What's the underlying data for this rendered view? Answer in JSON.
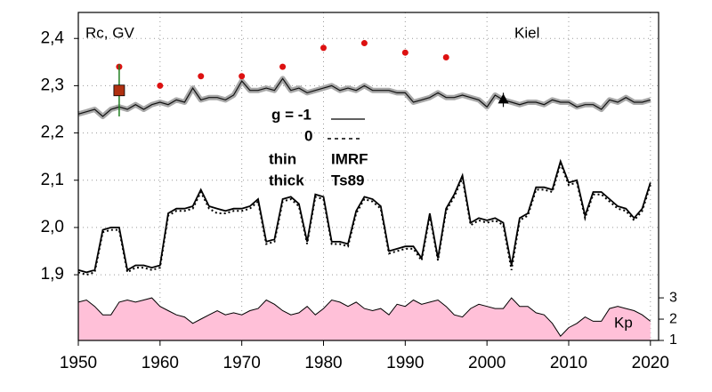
{
  "chart_data": {
    "type": "line",
    "title": "Rc, GV",
    "annotations": {
      "station": "Kiel",
      "g1": "g = -1",
      "g0": "0",
      "thin": "thin",
      "thick": "thick",
      "imrf": "IMRF",
      "ts89": "Ts89"
    },
    "xlim": [
      1950,
      2021
    ],
    "xticks": [
      1950,
      1960,
      1970,
      1980,
      1990,
      2000,
      2010,
      2020
    ],
    "ylim": [
      1.761,
      2.455
    ],
    "yticks": [
      {
        "value": 1.9,
        "label": "1,9"
      },
      {
        "value": 2.0,
        "label": "2,0"
      },
      {
        "value": 2.1,
        "label": "2,1"
      },
      {
        "value": 2.2,
        "label": "2,2"
      },
      {
        "value": 2.3,
        "label": "2,3"
      },
      {
        "value": 2.4,
        "label": "2,4"
      }
    ],
    "y2lim": [
      1,
      16.4
    ],
    "y2ticks": [
      1,
      2,
      3
    ],
    "grid": true,
    "series": [
      {
        "name": "Kp",
        "style": "area",
        "axis": "y2",
        "color": "#ffc0d8",
        "x": [
          1950,
          1951,
          1952,
          1953,
          1954,
          1955,
          1956,
          1957,
          1958,
          1959,
          1960,
          1961,
          1962,
          1963,
          1964,
          1965,
          1966,
          1967,
          1968,
          1969,
          1970,
          1971,
          1972,
          1973,
          1974,
          1975,
          1976,
          1977,
          1978,
          1979,
          1980,
          1981,
          1982,
          1983,
          1984,
          1985,
          1986,
          1987,
          1988,
          1989,
          1990,
          1991,
          1992,
          1993,
          1994,
          1995,
          1996,
          1997,
          1998,
          1999,
          2000,
          2001,
          2002,
          2003,
          2004,
          2005,
          2006,
          2007,
          2008,
          2009,
          2010,
          2011,
          2012,
          2013,
          2014,
          2015,
          2016,
          2017,
          2018,
          2019,
          2020
        ],
        "values": [
          2.8,
          2.9,
          2.6,
          2.2,
          2.2,
          2.8,
          2.9,
          2.8,
          2.9,
          3.0,
          2.6,
          2.4,
          2.2,
          2.1,
          1.8,
          2.0,
          2.2,
          2.4,
          2.2,
          2.3,
          2.2,
          2.4,
          2.5,
          2.9,
          2.7,
          2.4,
          2.2,
          2.3,
          2.6,
          2.2,
          2.5,
          2.9,
          2.8,
          2.6,
          2.8,
          2.5,
          2.4,
          2.5,
          2.2,
          2.7,
          2.6,
          2.9,
          2.7,
          2.8,
          2.9,
          2.6,
          2.2,
          2.1,
          2.5,
          2.7,
          2.6,
          2.5,
          2.5,
          3.0,
          2.6,
          2.6,
          2.3,
          2.2,
          1.8,
          1.2,
          1.6,
          1.8,
          2.1,
          1.9,
          1.9,
          2.5,
          2.6,
          2.5,
          2.4,
          2.2,
          1.9
        ]
      },
      {
        "style": "band",
        "color": "#111111",
        "x": [
          1950,
          1951,
          1952,
          1953,
          1954,
          1955,
          1956,
          1957,
          1958,
          1959,
          1960,
          1961,
          1962,
          1963,
          1964,
          1965,
          1966,
          1967,
          1968,
          1969,
          1970,
          1971,
          1972,
          1973,
          1974,
          1975,
          1976,
          1977,
          1978,
          1979,
          1980,
          1981,
          1982,
          1983,
          1984,
          1985,
          1986,
          1987,
          1988,
          1989,
          1990,
          1991,
          1992,
          1993,
          1994,
          1995,
          1996,
          1997,
          1998,
          1999,
          2000,
          2001,
          2002,
          2003,
          2004,
          2005,
          2006,
          2007,
          2008,
          2009,
          2010,
          2011,
          2012,
          2013,
          2014,
          2015,
          2016,
          2017,
          2018,
          2019,
          2020
        ],
        "values": [
          2.24,
          2.245,
          2.25,
          2.235,
          2.25,
          2.255,
          2.25,
          2.26,
          2.25,
          2.26,
          2.265,
          2.26,
          2.27,
          2.265,
          2.295,
          2.27,
          2.275,
          2.275,
          2.27,
          2.28,
          2.31,
          2.29,
          2.29,
          2.295,
          2.29,
          2.315,
          2.29,
          2.295,
          2.285,
          2.29,
          2.295,
          2.3,
          2.29,
          2.295,
          2.29,
          2.3,
          2.29,
          2.29,
          2.29,
          2.285,
          2.285,
          2.265,
          2.27,
          2.275,
          2.285,
          2.275,
          2.275,
          2.28,
          2.275,
          2.27,
          2.255,
          2.28,
          2.27,
          2.265,
          2.26,
          2.265,
          2.265,
          2.26,
          2.27,
          2.265,
          2.265,
          2.255,
          2.26,
          2.26,
          2.25,
          2.27,
          2.265,
          2.275,
          2.265,
          2.265,
          2.27
        ]
      },
      {
        "style": "solid",
        "color": "#000000",
        "x": [
          1950,
          1951,
          1952,
          1953,
          1954,
          1955,
          1956,
          1957,
          1958,
          1959,
          1960,
          1961,
          1962,
          1963,
          1964,
          1965,
          1966,
          1967,
          1968,
          1969,
          1970,
          1971,
          1972,
          1973,
          1974,
          1975,
          1976,
          1977,
          1978,
          1979,
          1980,
          1981,
          1982,
          1983,
          1984,
          1985,
          1986,
          1987,
          1988,
          1989,
          1990,
          1991,
          1992,
          1993,
          1994,
          1995,
          1996,
          1997,
          1998,
          1999,
          2000,
          2001,
          2002,
          2003,
          2004,
          2005,
          2006,
          2007,
          2008,
          2009,
          2010,
          2011,
          2012,
          2013,
          2014,
          2015,
          2016,
          2017,
          2018,
          2019,
          2020
        ],
        "values": [
          1.91,
          1.905,
          1.91,
          1.995,
          2.0,
          2.0,
          1.91,
          1.92,
          1.92,
          1.915,
          1.92,
          2.03,
          2.04,
          2.04,
          2.045,
          2.08,
          2.045,
          2.04,
          2.035,
          2.04,
          2.04,
          2.045,
          2.06,
          1.97,
          1.975,
          2.06,
          2.065,
          2.05,
          1.97,
          2.07,
          2.065,
          1.97,
          1.97,
          1.965,
          2.035,
          2.065,
          2.06,
          2.045,
          1.95,
          1.955,
          1.96,
          1.96,
          1.935,
          2.03,
          1.935,
          2.04,
          2.07,
          2.11,
          2.01,
          2.02,
          2.015,
          2.02,
          2.01,
          1.92,
          2.02,
          2.03,
          2.085,
          2.085,
          2.08,
          2.14,
          2.095,
          2.1,
          2.025,
          2.075,
          2.075,
          2.06,
          2.045,
          2.04,
          2.02,
          2.04,
          2.095
        ]
      },
      {
        "style": "dotted",
        "color": "#000000",
        "x": [
          1950,
          1951,
          1952,
          1953,
          1954,
          1955,
          1956,
          1957,
          1958,
          1959,
          1960,
          1961,
          1962,
          1963,
          1964,
          1965,
          1966,
          1967,
          1968,
          1969,
          1970,
          1971,
          1972,
          1973,
          1974,
          1975,
          1976,
          1977,
          1978,
          1979,
          1980,
          1981,
          1982,
          1983,
          1984,
          1985,
          1986,
          1987,
          1988,
          1989,
          1990,
          1991,
          1992,
          1993,
          1994,
          1995,
          1996,
          1997,
          1998,
          1999,
          2000,
          2001,
          2002,
          2003,
          2004,
          2005,
          2006,
          2007,
          2008,
          2009,
          2010,
          2011,
          2012,
          2013,
          2014,
          2015,
          2016,
          2017,
          2018,
          2019,
          2020
        ],
        "values": [
          1.905,
          1.9,
          1.905,
          1.99,
          1.995,
          1.995,
          1.905,
          1.915,
          1.915,
          1.91,
          1.915,
          2.025,
          2.035,
          2.035,
          2.04,
          2.075,
          2.04,
          2.03,
          2.03,
          2.035,
          2.035,
          2.04,
          2.055,
          1.965,
          1.97,
          2.055,
          2.06,
          2.045,
          1.965,
          2.065,
          2.06,
          1.965,
          1.965,
          1.96,
          2.03,
          2.06,
          2.055,
          2.04,
          1.945,
          1.95,
          1.955,
          1.955,
          1.93,
          2.025,
          1.93,
          2.035,
          2.065,
          2.105,
          2.005,
          2.015,
          2.01,
          2.015,
          2.005,
          1.91,
          2.015,
          2.025,
          2.08,
          2.08,
          2.075,
          2.135,
          2.09,
          2.095,
          2.02,
          2.07,
          2.07,
          2.055,
          2.04,
          2.035,
          2.015,
          2.035,
          2.09
        ]
      },
      {
        "style": "dots",
        "color": "#dd1111",
        "x": [
          1955,
          1960,
          1965,
          1970,
          1975,
          1980,
          1985,
          1990,
          1995
        ],
        "values": [
          2.34,
          2.3,
          2.32,
          2.32,
          2.34,
          2.38,
          2.39,
          2.37,
          2.36
        ]
      },
      {
        "style": "square",
        "color": "#b03010",
        "error_color": "#208020",
        "x": [
          1955
        ],
        "values": [
          2.29
        ],
        "error": [
          0.055
        ]
      },
      {
        "style": "triangle",
        "color": "#000000",
        "x": [
          2002
        ],
        "values": [
          2.27
        ],
        "error": [
          0.015
        ]
      }
    ]
  }
}
